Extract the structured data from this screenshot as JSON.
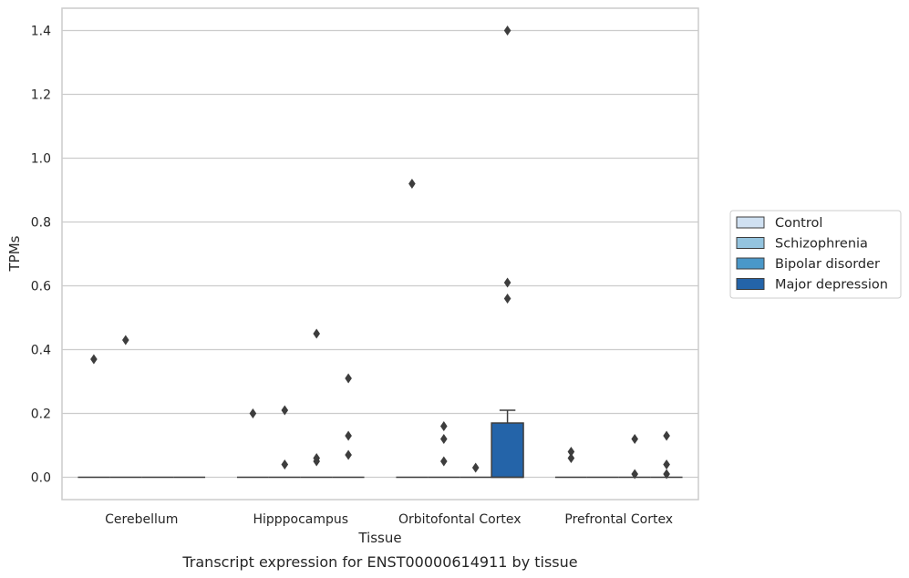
{
  "caption": "Transcript expression for ENST00000614911 by tissue",
  "chart_data": {
    "type": "box",
    "xlabel": "Tissue",
    "ylabel": "TPMs",
    "ylim": [
      -0.07,
      1.47
    ],
    "yticks": [
      "0.0",
      "0.2",
      "0.4",
      "0.6",
      "0.8",
      "1.0",
      "1.2",
      "1.4"
    ],
    "ytick_values": [
      0.0,
      0.2,
      0.4,
      0.6,
      0.8,
      1.0,
      1.2,
      1.4
    ],
    "grid": "horizontal",
    "legend_position": "right",
    "categories": [
      "Cerebellum",
      "Hipppocampus",
      "Orbitofontal Cortex",
      "Prefrontal Cortex"
    ],
    "series": [
      {
        "name": "Control",
        "color": "#d0e1f2",
        "boxes": [
          {
            "q1": 0,
            "median": 0,
            "q3": 0,
            "whisker_high": 0,
            "outliers": [
              0.37
            ]
          },
          {
            "q1": 0,
            "median": 0,
            "q3": 0,
            "whisker_high": 0,
            "outliers": [
              0.2
            ]
          },
          {
            "q1": 0,
            "median": 0,
            "q3": 0,
            "whisker_high": 0,
            "outliers": [
              0.92
            ]
          },
          {
            "q1": 0,
            "median": 0,
            "q3": 0,
            "whisker_high": 0,
            "outliers": [
              0.08,
              0.06
            ]
          }
        ]
      },
      {
        "name": "Schizophrenia",
        "color": "#94c4df",
        "boxes": [
          {
            "q1": 0,
            "median": 0,
            "q3": 0,
            "whisker_high": 0,
            "outliers": [
              0.43
            ]
          },
          {
            "q1": 0,
            "median": 0,
            "q3": 0,
            "whisker_high": 0,
            "outliers": [
              0.21,
              0.04
            ]
          },
          {
            "q1": 0,
            "median": 0,
            "q3": 0,
            "whisker_high": 0,
            "outliers": [
              0.16,
              0.12,
              0.05
            ]
          },
          {
            "q1": 0,
            "median": 0,
            "q3": 0,
            "whisker_high": 0,
            "outliers": []
          }
        ]
      },
      {
        "name": "Bipolar disorder",
        "color": "#4a98c9",
        "boxes": [
          {
            "q1": 0,
            "median": 0,
            "q3": 0,
            "whisker_high": 0,
            "outliers": []
          },
          {
            "q1": 0,
            "median": 0,
            "q3": 0,
            "whisker_high": 0,
            "outliers": [
              0.45,
              0.06,
              0.05
            ]
          },
          {
            "q1": 0,
            "median": 0,
            "q3": 0,
            "whisker_high": 0,
            "outliers": [
              0.03
            ]
          },
          {
            "q1": 0,
            "median": 0,
            "q3": 0,
            "whisker_high": 0,
            "outliers": [
              0.12,
              0.01
            ]
          }
        ]
      },
      {
        "name": "Major depression",
        "color": "#2464a9",
        "boxes": [
          {
            "q1": 0,
            "median": 0,
            "q3": 0,
            "whisker_high": 0,
            "outliers": []
          },
          {
            "q1": 0,
            "median": 0,
            "q3": 0,
            "whisker_high": 0,
            "outliers": [
              0.31,
              0.13,
              0.07
            ]
          },
          {
            "q1": 0,
            "median": 0,
            "q3": 0.17,
            "whisker_high": 0.21,
            "outliers": [
              1.4,
              0.61,
              0.56
            ]
          },
          {
            "q1": 0,
            "median": 0,
            "q3": 0,
            "whisker_high": 0,
            "outliers": [
              0.13,
              0.04,
              0.01
            ]
          }
        ]
      }
    ]
  }
}
